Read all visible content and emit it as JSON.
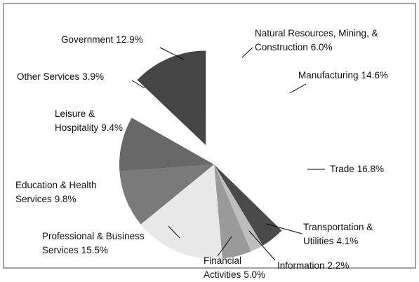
{
  "chart_data": {
    "type": "pie",
    "categories": [
      "Natural Resources, Mining, & Construction",
      "Manufacturing",
      "Trade",
      "Transportation & Utilities",
      "Information",
      "Financial Activities",
      "Professional & Business Services",
      "Education & Health Services",
      "Leisure & Hospitality",
      "Other Services",
      "Government"
    ],
    "values": [
      6.0,
      14.6,
      16.8,
      4.1,
      2.2,
      5.0,
      15.5,
      9.8,
      9.4,
      3.9,
      12.9
    ],
    "value_labels": [
      "6.0%",
      "14.6%",
      "16.8%",
      "4.1%",
      "2.2%",
      "5.0%",
      "15.5%",
      "9.8%",
      "9.4%",
      "3.9%",
      "12.9%"
    ],
    "colors": [
      "#ffffff",
      "#ffffff",
      "#ffffff",
      "#4a4a4a",
      "#bdbdbd",
      "#9a9a9a",
      "#e8e8e8",
      "#7a7a7a",
      "#686868",
      "#ffffff",
      "#454545"
    ]
  }
}
